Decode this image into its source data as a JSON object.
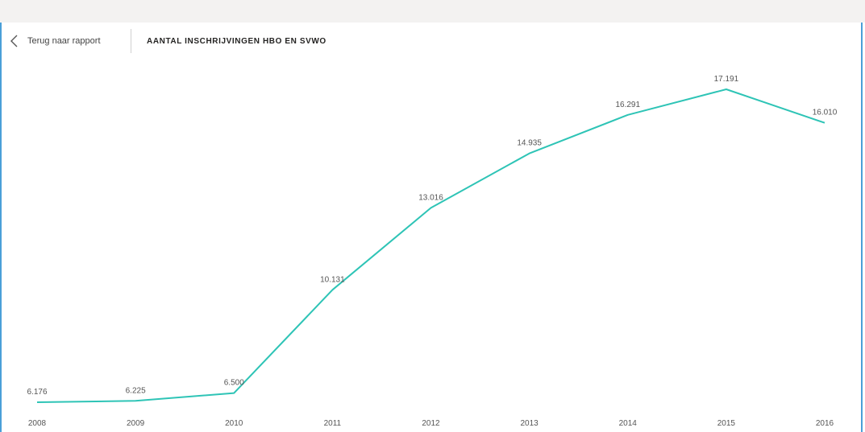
{
  "header": {
    "back_label": "Terug naar rapport",
    "back_icon": "chevron-left-icon",
    "title": "AANTAL INSCHRIJVINGEN HBO EN SVWO"
  },
  "colors": {
    "line": "#2ec4b6",
    "label": "#555555",
    "accent_border": "#4a9fd8"
  },
  "chart_data": {
    "type": "line",
    "title": "AANTAL INSCHRIJVINGEN HBO EN SVWO",
    "xlabel": "",
    "ylabel": "",
    "grid": false,
    "x": [
      "2008",
      "2009",
      "2010",
      "2011",
      "2012",
      "2013",
      "2014",
      "2015",
      "2016"
    ],
    "series": [
      {
        "values": [
          6176,
          6225,
          6500,
          10131,
          13016,
          14935,
          16291,
          17191,
          16010
        ],
        "labels": [
          "6.176",
          "6.225",
          "6.500",
          "10.131",
          "13.016",
          "14.935",
          "16.291",
          "17.191",
          "16.010"
        ]
      }
    ],
    "ylim": [
      6000,
      17400
    ]
  }
}
